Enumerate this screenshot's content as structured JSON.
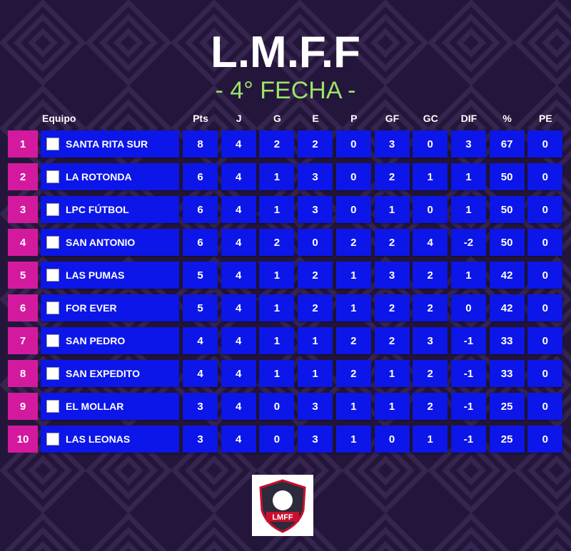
{
  "header": {
    "title": "L.M.F.F",
    "subtitle": "- 4° FECHA -"
  },
  "table": {
    "columns": [
      "Equipo",
      "Pts",
      "J",
      "G",
      "E",
      "P",
      "GF",
      "GC",
      "DIF",
      "%",
      "PE"
    ],
    "rows": [
      [
        1,
        "SANTA RITA SUR",
        8,
        4,
        2,
        2,
        0,
        3,
        0,
        3,
        67,
        0
      ],
      [
        2,
        "LA ROTONDA",
        6,
        4,
        1,
        3,
        0,
        2,
        1,
        1,
        50,
        0
      ],
      [
        3,
        "LPC FÚTBOL",
        6,
        4,
        1,
        3,
        0,
        1,
        0,
        1,
        50,
        0
      ],
      [
        4,
        "SAN ANTONIO",
        6,
        4,
        2,
        0,
        2,
        2,
        4,
        -2,
        50,
        0
      ],
      [
        5,
        "LAS PUMAS",
        5,
        4,
        1,
        2,
        1,
        3,
        2,
        1,
        42,
        0
      ],
      [
        6,
        "FOR EVER",
        5,
        4,
        1,
        2,
        1,
        2,
        2,
        0,
        42,
        0
      ],
      [
        7,
        "SAN PEDRO",
        4,
        4,
        1,
        1,
        2,
        2,
        3,
        -1,
        33,
        0
      ],
      [
        8,
        "SAN EXPEDITO",
        4,
        4,
        1,
        1,
        2,
        1,
        2,
        -1,
        33,
        0
      ],
      [
        9,
        "EL MOLLAR",
        3,
        4,
        0,
        3,
        1,
        1,
        2,
        -1,
        25,
        0
      ],
      [
        10,
        "LAS LEONAS",
        3,
        4,
        0,
        3,
        1,
        0,
        1,
        -1,
        25,
        0
      ]
    ]
  },
  "logo": {
    "text": "LMFF"
  }
}
